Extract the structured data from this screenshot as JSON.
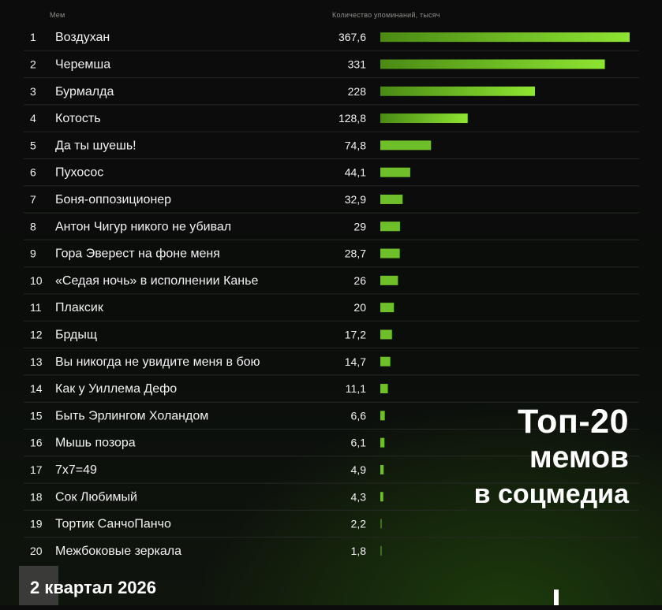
{
  "header": {
    "meme_col": "Мем",
    "count_col": "Количество упоминаний, тысяч"
  },
  "title": {
    "line1": "Топ-20",
    "line2": "мемов",
    "line3": "в соцмедиа"
  },
  "period": "2 квартал 2026",
  "colors": {
    "bar_start": "#4a8a14",
    "bar_end": "#8ee532",
    "text": "#f2f2f2",
    "background": "#0b0c0b"
  },
  "chart_data": {
    "type": "bar",
    "orientation": "horizontal",
    "xlabel": "Количество упоминаний, тысяч",
    "xlim": [
      0,
      367.6
    ],
    "grid": false,
    "legend": "none",
    "ranks": [
      "1",
      "2",
      "3",
      "4",
      "5",
      "6",
      "7",
      "8",
      "9",
      "10",
      "11",
      "12",
      "13",
      "14",
      "15",
      "16",
      "17",
      "18",
      "19",
      "20"
    ],
    "categories": [
      "Воздухан",
      "Черемша",
      "Бурмалда",
      "Котость",
      "Да ты шуешь!",
      "Пухосос",
      "Боня-оппозиционер",
      "Антон Чигур никого не убивал",
      "Гора Эверест на фоне меня",
      "«Седая ночь» в исполнении Канье",
      "Плаксик",
      "Брдыщ",
      "Вы никогда не увидите меня в бою",
      "Как у Уиллема Дефо",
      "Быть Эрлингом Холандом",
      "Мышь позора",
      "7x7=49",
      "Сок Любимый",
      "Тортик СанчоПанчо",
      "Межбоковые зеркала"
    ],
    "values": [
      367.6,
      331,
      228,
      128.8,
      74.8,
      44.1,
      32.9,
      29,
      28.7,
      26,
      20,
      17.2,
      14.7,
      11.1,
      6.6,
      6.1,
      4.9,
      4.3,
      2.2,
      1.8
    ],
    "value_labels": [
      "367,6",
      "331",
      "228",
      "128,8",
      "74,8",
      "44,1",
      "32,9",
      "29",
      "28,7",
      "26",
      "20",
      "17,2",
      "14,7",
      "11,1",
      "6,6",
      "6,1",
      "4,9",
      "4,3",
      "2,2",
      "1,8"
    ]
  }
}
